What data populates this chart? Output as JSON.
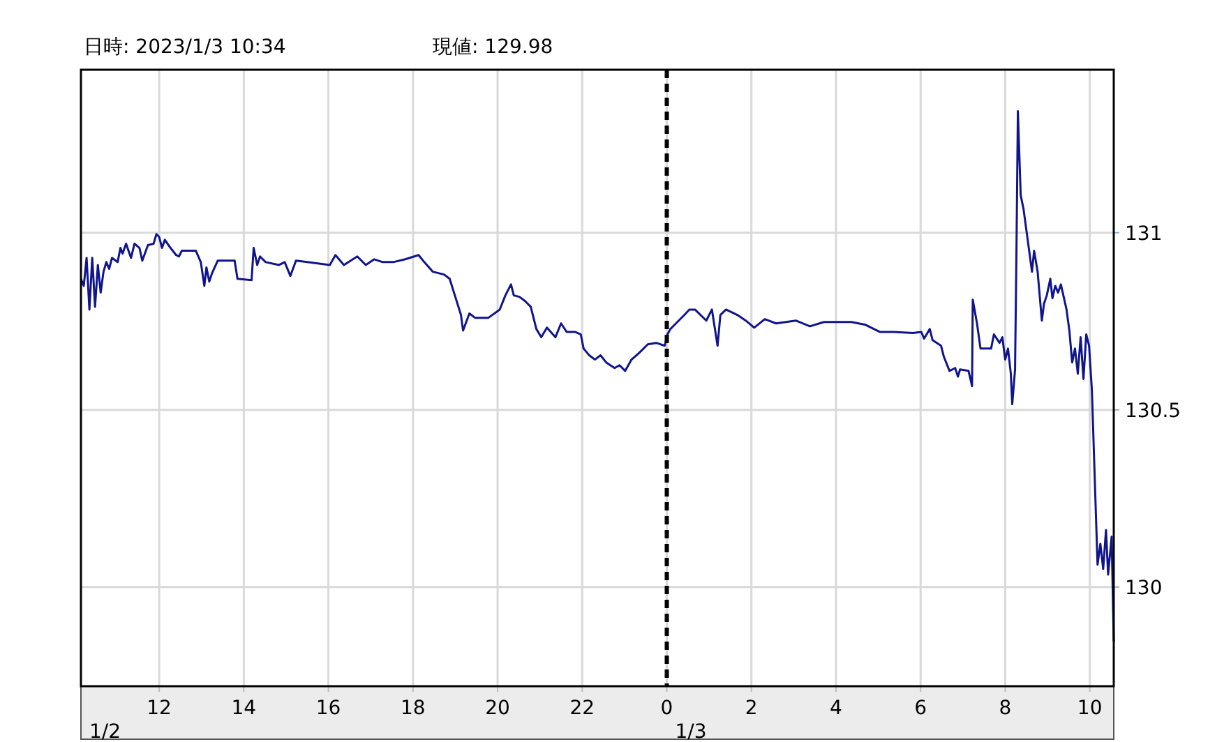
{
  "chart_data": {
    "type": "line",
    "title": "日時: 2023/1/3  10:34",
    "subtitle": "現値: 129.98",
    "color": "#10158c",
    "xlim": [
      "2023-01-02T10:09",
      "2023-01-03T10:34"
    ],
    "ylim": [
      129.72,
      131.46
    ],
    "xticks": [
      {
        "value": "2023-01-02T12:00",
        "label": "12"
      },
      {
        "value": "2023-01-02T14:00",
        "label": "14"
      },
      {
        "value": "2023-01-02T16:00",
        "label": "16"
      },
      {
        "value": "2023-01-02T18:00",
        "label": "18"
      },
      {
        "value": "2023-01-02T20:00",
        "label": "20"
      },
      {
        "value": "2023-01-02T22:00",
        "label": "22"
      },
      {
        "value": "2023-01-03T00:00",
        "label": "0"
      },
      {
        "value": "2023-01-03T02:00",
        "label": "2"
      },
      {
        "value": "2023-01-03T04:00",
        "label": "4"
      },
      {
        "value": "2023-01-03T06:00",
        "label": "6"
      },
      {
        "value": "2023-01-03T08:00",
        "label": "8"
      },
      {
        "value": "2023-01-03T10:00",
        "label": "10"
      }
    ],
    "yticks": [
      130,
      130.5,
      131
    ],
    "grid": true,
    "ref_lines": [
      {
        "axis": "x",
        "value": "2023-01-03T00:00",
        "line_style": "dashed",
        "color": "#000000"
      }
    ],
    "annotations": [
      "1/2",
      "1/3"
    ],
    "x": [
      "2023-01-02T10:09",
      "2023-01-02T10:13",
      "2023-01-02T10:17",
      "2023-01-02T10:21",
      "2023-01-02T10:25",
      "2023-01-02T10:29",
      "2023-01-02T10:33",
      "2023-01-02T10:37",
      "2023-01-02T10:41",
      "2023-01-02T10:45",
      "2023-01-02T10:49",
      "2023-01-02T10:53",
      "2023-01-02T11:01",
      "2023-01-02T11:05",
      "2023-01-02T11:08",
      "2023-01-02T11:13",
      "2023-01-02T11:20",
      "2023-01-02T11:25",
      "2023-01-02T11:32",
      "2023-01-02T11:36",
      "2023-01-02T11:44",
      "2023-01-02T11:52",
      "2023-01-02T11:56",
      "2023-01-02T12:00",
      "2023-01-02T12:04",
      "2023-01-02T12:08",
      "2023-01-02T12:16",
      "2023-01-02T12:24",
      "2023-01-02T12:28",
      "2023-01-02T12:32",
      "2023-01-02T12:52",
      "2023-01-02T12:59",
      "2023-01-02T13:04",
      "2023-01-02T13:07",
      "2023-01-02T13:11",
      "2023-01-02T13:15",
      "2023-01-02T13:23",
      "2023-01-02T13:47",
      "2023-01-02T13:51",
      "2023-01-02T14:11",
      "2023-01-02T14:14",
      "2023-01-02T14:19",
      "2023-01-02T14:23",
      "2023-01-02T14:31",
      "2023-01-02T14:50",
      "2023-01-02T14:58",
      "2023-01-02T15:06",
      "2023-01-02T15:14",
      "2023-01-02T15:30",
      "2023-01-02T16:02",
      "2023-01-02T16:10",
      "2023-01-02T16:22",
      "2023-01-02T16:41",
      "2023-01-02T16:53",
      "2023-01-02T17:05",
      "2023-01-02T17:17",
      "2023-01-02T17:32",
      "2023-01-02T17:49",
      "2023-01-02T18:08",
      "2023-01-02T18:16",
      "2023-01-02T18:28",
      "2023-01-02T18:44",
      "2023-01-02T18:52",
      "2023-01-02T19:00",
      "2023-01-02T19:08",
      "2023-01-02T19:11",
      "2023-01-02T19:20",
      "2023-01-02T19:28",
      "2023-01-02T19:47",
      "2023-01-02T20:03",
      "2023-01-02T20:11",
      "2023-01-02T20:19",
      "2023-01-02T20:23",
      "2023-01-02T20:31",
      "2023-01-02T20:39",
      "2023-01-02T20:47",
      "2023-01-02T20:55",
      "2023-01-02T21:02",
      "2023-01-02T21:10",
      "2023-01-02T21:22",
      "2023-01-02T21:30",
      "2023-01-02T21:38",
      "2023-01-02T21:50",
      "2023-01-02T21:58",
      "2023-01-02T22:02",
      "2023-01-02T22:10",
      "2023-01-02T22:18",
      "2023-01-02T22:26",
      "2023-01-02T22:34",
      "2023-01-02T22:46",
      "2023-01-02T22:53",
      "2023-01-02T23:01",
      "2023-01-02T23:10",
      "2023-01-02T23:21",
      "2023-01-02T23:33",
      "2023-01-02T23:45",
      "2023-01-02T23:57",
      "2023-01-03T00:01",
      "2023-01-03T00:05",
      "2023-01-03T00:13",
      "2023-01-03T00:25",
      "2023-01-03T00:32",
      "2023-01-03T00:40",
      "2023-01-03T00:56",
      "2023-01-03T01:04",
      "2023-01-03T01:12",
      "2023-01-03T01:16",
      "2023-01-03T01:24",
      "2023-01-03T01:40",
      "2023-01-03T01:52",
      "2023-01-03T02:04",
      "2023-01-03T02:19",
      "2023-01-03T02:35",
      "2023-01-03T03:03",
      "2023-01-03T03:23",
      "2023-01-03T03:43",
      "2023-01-03T04:02",
      "2023-01-03T04:22",
      "2023-01-03T04:42",
      "2023-01-03T05:02",
      "2023-01-03T05:22",
      "2023-01-03T05:49",
      "2023-01-03T06:01",
      "2023-01-03T06:05",
      "2023-01-03T06:13",
      "2023-01-03T06:17",
      "2023-01-03T06:29",
      "2023-01-03T06:33",
      "2023-01-03T06:41",
      "2023-01-03T06:49",
      "2023-01-03T06:53",
      "2023-01-03T06:56",
      "2023-01-03T07:08",
      "2023-01-03T07:13",
      "2023-01-03T07:14",
      "2023-01-03T07:20",
      "2023-01-03T07:25",
      "2023-01-03T07:40",
      "2023-01-03T07:44",
      "2023-01-03T07:52",
      "2023-01-03T07:56",
      "2023-01-03T08:00",
      "2023-01-03T08:04",
      "2023-01-03T08:08",
      "2023-01-03T08:10",
      "2023-01-03T08:14",
      "2023-01-03T08:16",
      "2023-01-03T08:18",
      "2023-01-03T08:22",
      "2023-01-03T08:26",
      "2023-01-03T08:30",
      "2023-01-03T08:34",
      "2023-01-03T08:38",
      "2023-01-03T08:41",
      "2023-01-03T08:46",
      "2023-01-03T08:52",
      "2023-01-03T08:55",
      "2023-01-03T08:59",
      "2023-01-03T09:04",
      "2023-01-03T09:07",
      "2023-01-03T09:11",
      "2023-01-03T09:15",
      "2023-01-03T09:19",
      "2023-01-03T09:27",
      "2023-01-03T09:31",
      "2023-01-03T09:35",
      "2023-01-03T09:39",
      "2023-01-03T09:43",
      "2023-01-03T09:47",
      "2023-01-03T09:51",
      "2023-01-03T09:55",
      "2023-01-03T09:59",
      "2023-01-03T10:03",
      "2023-01-03T10:11",
      "2023-01-03T10:15",
      "2023-01-03T10:19",
      "2023-01-03T10:23",
      "2023-01-03T10:26",
      "2023-01-03T10:31",
      "2023-01-03T10:34"
    ],
    "values": [
      130.87,
      130.85,
      130.929,
      130.783,
      130.929,
      130.791,
      130.909,
      130.831,
      130.89,
      130.917,
      130.898,
      130.929,
      130.917,
      130.957,
      130.941,
      130.969,
      130.929,
      130.969,
      130.957,
      130.921,
      130.965,
      130.969,
      130.996,
      130.988,
      130.957,
      130.98,
      130.957,
      130.937,
      130.933,
      130.949,
      130.949,
      130.917,
      130.85,
      130.902,
      130.862,
      130.886,
      130.921,
      130.921,
      130.87,
      130.866,
      130.957,
      130.909,
      130.933,
      130.917,
      130.909,
      130.917,
      130.878,
      130.921,
      130.917,
      130.909,
      130.937,
      130.909,
      130.933,
      130.909,
      130.925,
      130.917,
      130.917,
      130.925,
      130.937,
      130.917,
      130.89,
      130.882,
      130.87,
      130.819,
      130.768,
      130.724,
      130.772,
      130.76,
      130.76,
      130.783,
      130.823,
      130.854,
      130.823,
      130.819,
      130.807,
      130.791,
      130.728,
      130.705,
      130.732,
      130.705,
      130.744,
      130.72,
      130.72,
      130.713,
      130.673,
      130.654,
      130.642,
      130.654,
      130.634,
      130.618,
      130.626,
      130.61,
      130.642,
      130.661,
      130.685,
      130.689,
      130.681,
      130.713,
      130.728,
      130.744,
      130.768,
      130.783,
      130.783,
      130.752,
      130.783,
      130.681,
      130.768,
      130.783,
      130.768,
      130.752,
      130.732,
      130.756,
      130.744,
      130.752,
      130.736,
      130.748,
      130.748,
      130.748,
      130.74,
      130.72,
      130.72,
      130.717,
      130.72,
      130.701,
      130.728,
      130.697,
      130.681,
      130.65,
      130.61,
      130.618,
      130.594,
      130.614,
      130.61,
      130.567,
      130.811,
      130.744,
      130.673,
      130.673,
      130.713,
      130.689,
      130.705,
      130.642,
      130.673,
      130.602,
      130.516,
      130.614,
      130.949,
      131.343,
      131.106,
      131.067,
      131.008,
      130.949,
      130.89,
      130.949,
      130.89,
      130.752,
      130.799,
      130.823,
      130.87,
      130.815,
      130.85,
      130.831,
      130.854,
      130.783,
      130.724,
      130.634,
      130.673,
      130.602,
      130.705,
      130.587,
      130.713,
      130.681,
      130.555,
      130.063,
      130.122,
      130.051,
      130.161,
      130.035,
      130.142,
      129.846
    ]
  }
}
